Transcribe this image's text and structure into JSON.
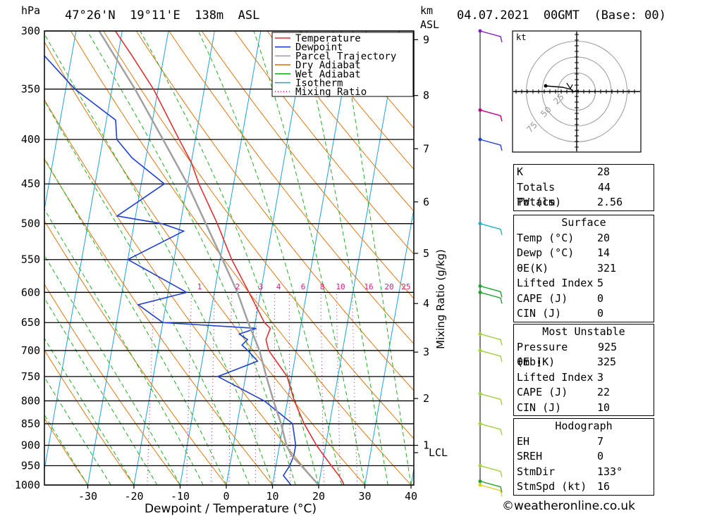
{
  "header": {
    "hpa": "hPa",
    "location": "47°26'N  19°11'E  138m  ASL",
    "km": "km",
    "asl": "ASL",
    "datetime": "04.07.2021  00GMT  (Base: 00)"
  },
  "chart_data": {
    "type": "line",
    "subtype": "skew-T log-p diagram",
    "xlabel": "Dewpoint / Temperature (°C)",
    "ylabel_left": "hPa",
    "ylabel_right": "Mixing Ratio (g/kg)",
    "x_ticks": [
      -30,
      -20,
      -10,
      0,
      10,
      20,
      30,
      40
    ],
    "pressure_levels": [
      300,
      350,
      400,
      450,
      500,
      550,
      600,
      650,
      700,
      750,
      800,
      850,
      900,
      950,
      1000
    ],
    "km_ticks": [
      1,
      2,
      3,
      4,
      5,
      6,
      7,
      8,
      9
    ],
    "mixing_ratio_labels": [
      "1",
      "2",
      "3",
      "4",
      "6",
      "8",
      "10",
      "16",
      "20",
      "25"
    ],
    "lcl_label": "LCL",
    "legend": [
      "Temperature",
      "Dewpoint",
      "Parcel Trajectory",
      "Dry Adiabat",
      "Wet Adiabat",
      "Isotherm",
      "Mixing Ratio"
    ],
    "series": [
      {
        "name": "Temperature",
        "color": "#e03030",
        "points": [
          [
            1000,
            25.5
          ],
          [
            990,
            25
          ],
          [
            975,
            24
          ],
          [
            950,
            22
          ],
          [
            925,
            20
          ],
          [
            900,
            18
          ],
          [
            850,
            14.5
          ],
          [
            800,
            11.5
          ],
          [
            750,
            9
          ],
          [
            700,
            4
          ],
          [
            680,
            3
          ],
          [
            660,
            3.5
          ],
          [
            650,
            2
          ],
          [
            600,
            -2.5
          ],
          [
            550,
            -7.5
          ],
          [
            500,
            -12
          ],
          [
            450,
            -17.5
          ],
          [
            425,
            -20
          ],
          [
            400,
            -23.5
          ],
          [
            350,
            -31
          ],
          [
            320,
            -37
          ],
          [
            300,
            -41.5
          ]
        ]
      },
      {
        "name": "Dewpoint",
        "color": "#2040d0",
        "points": [
          [
            1000,
            14
          ],
          [
            975,
            12
          ],
          [
            950,
            13
          ],
          [
            925,
            13.5
          ],
          [
            900,
            13.5
          ],
          [
            850,
            12
          ],
          [
            800,
            5
          ],
          [
            750,
            -6
          ],
          [
            720,
            2
          ],
          [
            700,
            -0.5
          ],
          [
            690,
            -2
          ],
          [
            680,
            -1
          ],
          [
            670,
            -3
          ],
          [
            660,
            0.5
          ],
          [
            650,
            -20
          ],
          [
            620,
            -26
          ],
          [
            600,
            -16
          ],
          [
            550,
            -30
          ],
          [
            510,
            -19
          ],
          [
            500,
            -24
          ],
          [
            490,
            -34
          ],
          [
            450,
            -25
          ],
          [
            420,
            -33
          ],
          [
            400,
            -37
          ],
          [
            380,
            -38
          ],
          [
            350,
            -48
          ],
          [
            320,
            -56
          ],
          [
            310,
            -57
          ],
          [
            300,
            -57
          ]
        ]
      },
      {
        "name": "Parcel Trajectory",
        "color": "#a0a0a0",
        "points": [
          [
            1000,
            20
          ],
          [
            950,
            15.5
          ],
          [
            925,
            13
          ],
          [
            900,
            11.5
          ],
          [
            850,
            9.5
          ],
          [
            800,
            7
          ],
          [
            750,
            4.5
          ],
          [
            700,
            2
          ],
          [
            650,
            -1.5
          ],
          [
            600,
            -5
          ],
          [
            550,
            -9.5
          ],
          [
            500,
            -14.5
          ],
          [
            450,
            -20
          ],
          [
            400,
            -27
          ],
          [
            350,
            -35
          ],
          [
            300,
            -45
          ]
        ]
      }
    ],
    "wind_barbs": [
      {
        "p": 300,
        "color": "#8020c0"
      },
      {
        "p": 370,
        "color": "#c00080"
      },
      {
        "p": 400,
        "color": "#2040d0"
      },
      {
        "p": 500,
        "color": "#20b0c0"
      },
      {
        "p": 590,
        "color": "#20a030"
      },
      {
        "p": 600,
        "color": "#20a030"
      },
      {
        "p": 670,
        "color": "#a0d040"
      },
      {
        "p": 700,
        "color": "#a0d040"
      },
      {
        "p": 785,
        "color": "#a0d040"
      },
      {
        "p": 850,
        "color": "#a0d040"
      },
      {
        "p": 950,
        "color": "#a0d040"
      },
      {
        "p": 990,
        "color": "#20a030"
      },
      {
        "p": 1000,
        "color": "#e0d020"
      }
    ]
  },
  "hodograph": {
    "unit": "kt",
    "ring_labels": [
      "25",
      "50",
      "75"
    ]
  },
  "indices": {
    "rows": [
      {
        "label": "K",
        "value": "28"
      },
      {
        "label": "Totals Totals",
        "value": "44"
      },
      {
        "label": "PW (cm)",
        "value": "2.56"
      }
    ]
  },
  "surface": {
    "title": "Surface",
    "rows": [
      {
        "label": "Temp (°C)",
        "value": "20"
      },
      {
        "label": "Dewp (°C)",
        "value": "14"
      },
      {
        "label": "θE(K)",
        "value": "321"
      },
      {
        "label": "Lifted Index",
        "value": "5"
      },
      {
        "label": "CAPE (J)",
        "value": "0"
      },
      {
        "label": "CIN (J)",
        "value": "0"
      }
    ]
  },
  "most_unstable": {
    "title": "Most Unstable",
    "rows": [
      {
        "label": "Pressure (mb)",
        "value": "925"
      },
      {
        "label": "θE (K)",
        "value": "325"
      },
      {
        "label": "Lifted Index",
        "value": "3"
      },
      {
        "label": "CAPE (J)",
        "value": "22"
      },
      {
        "label": "CIN (J)",
        "value": "10"
      }
    ]
  },
  "hodograph_table": {
    "title": "Hodograph",
    "rows": [
      {
        "label": "EH",
        "value": "7"
      },
      {
        "label": "SREH",
        "value": "0"
      },
      {
        "label": "StmDir",
        "value": "133°"
      },
      {
        "label": "StmSpd (kt)",
        "value": "16"
      }
    ]
  },
  "footer": {
    "copyright": "©weatheronline.co.uk"
  }
}
